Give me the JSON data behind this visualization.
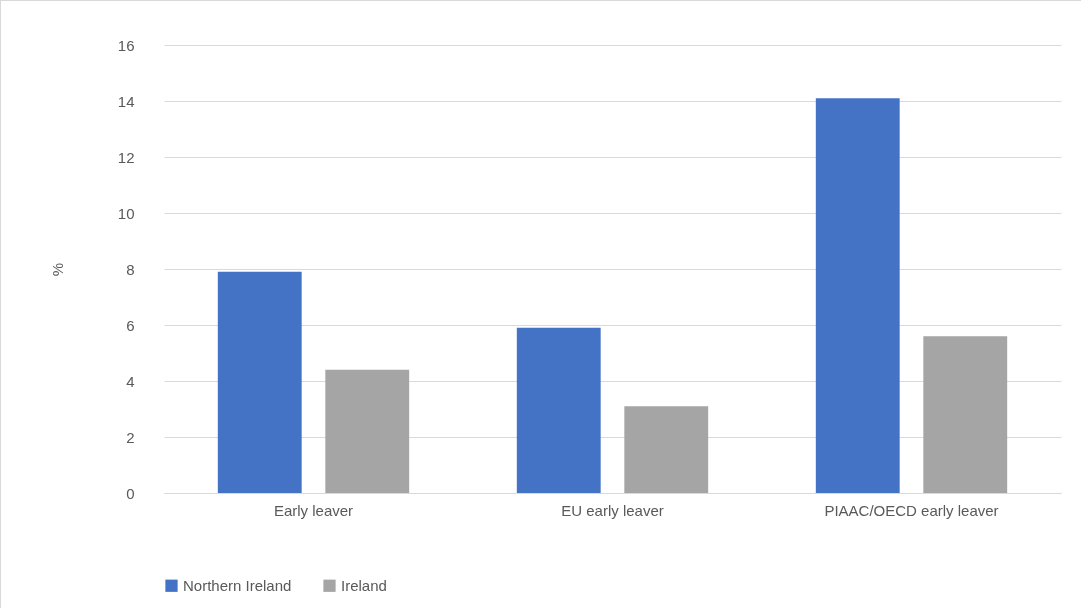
{
  "chart_data": {
    "type": "bar",
    "ylabel": "%",
    "categories": [
      "Early leaver",
      "EU early leaver",
      "PIAAC/OECD early leaver"
    ],
    "series": [
      {
        "name": "Northern Ireland",
        "color": "#4472c4",
        "values": [
          7.9,
          5.9,
          14.1
        ]
      },
      {
        "name": "Ireland",
        "color": "#a5a5a5",
        "values": [
          4.4,
          3.1,
          5.6
        ]
      }
    ],
    "ylim": [
      0,
      16
    ],
    "yticks": [
      0,
      2,
      4,
      6,
      8,
      10,
      12,
      14,
      16
    ],
    "grid": "y",
    "legend": "bottom"
  }
}
